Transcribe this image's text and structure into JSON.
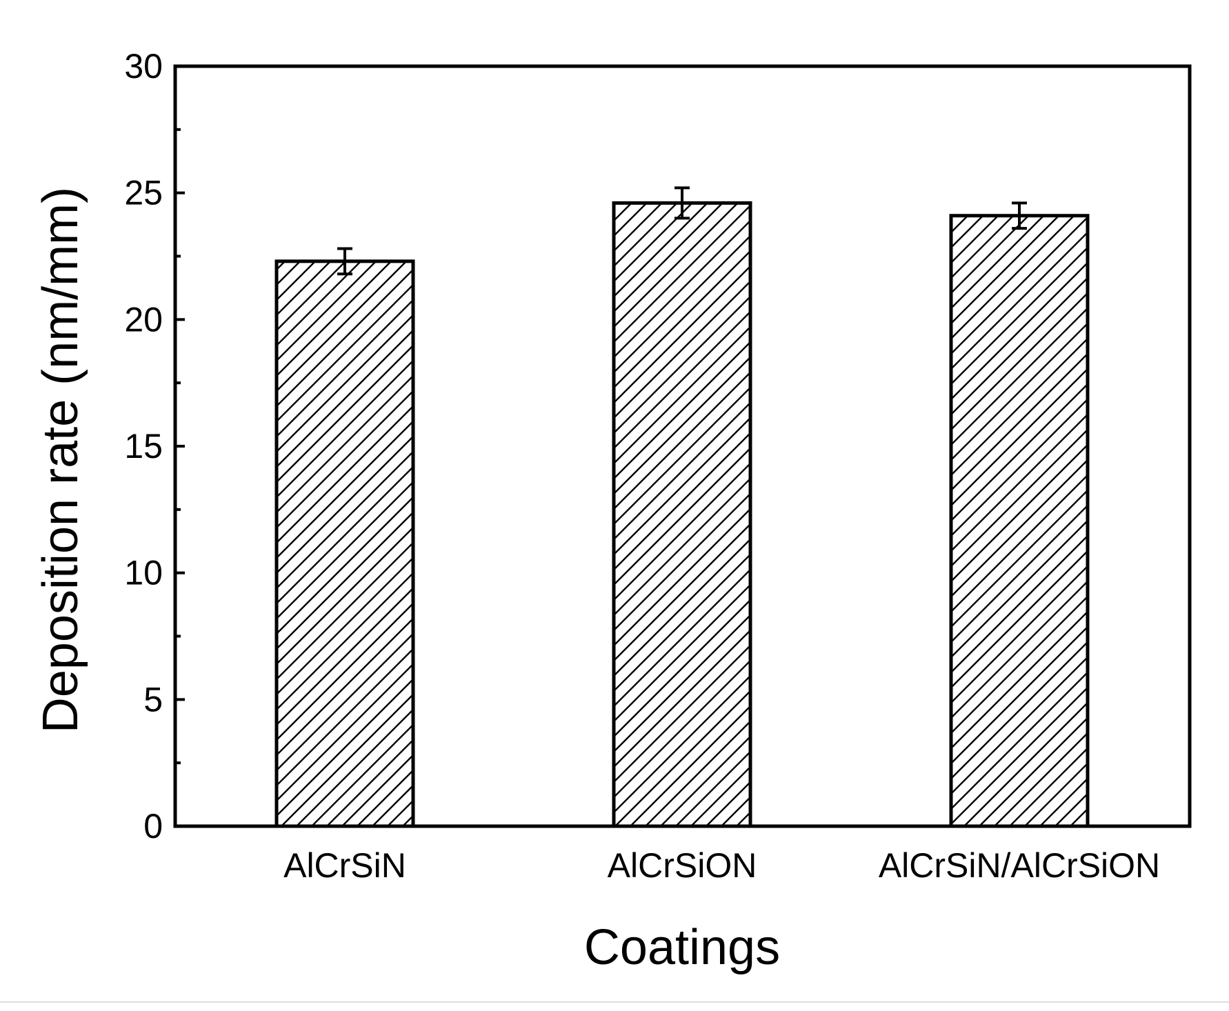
{
  "chart_data": {
    "type": "bar",
    "title": "",
    "xlabel": "Coatings",
    "ylabel": "Deposition rate (nm/mm)",
    "categories": [
      "AlCrSiN",
      "AlCrSiON",
      "AlCrSiN/AlCrSiON"
    ],
    "values": [
      22.3,
      24.6,
      24.1
    ],
    "errors": [
      0.5,
      0.6,
      0.5
    ],
    "ylim": [
      0,
      30
    ],
    "yticks": [
      0,
      5,
      10,
      15,
      20,
      25,
      30
    ],
    "ytick_labels": [
      "0",
      "5",
      "10",
      "15",
      "20",
      "25",
      "30"
    ],
    "grid": false,
    "bar_fill": "hatched",
    "bar_color": "#000000",
    "background": "#ffffff"
  }
}
